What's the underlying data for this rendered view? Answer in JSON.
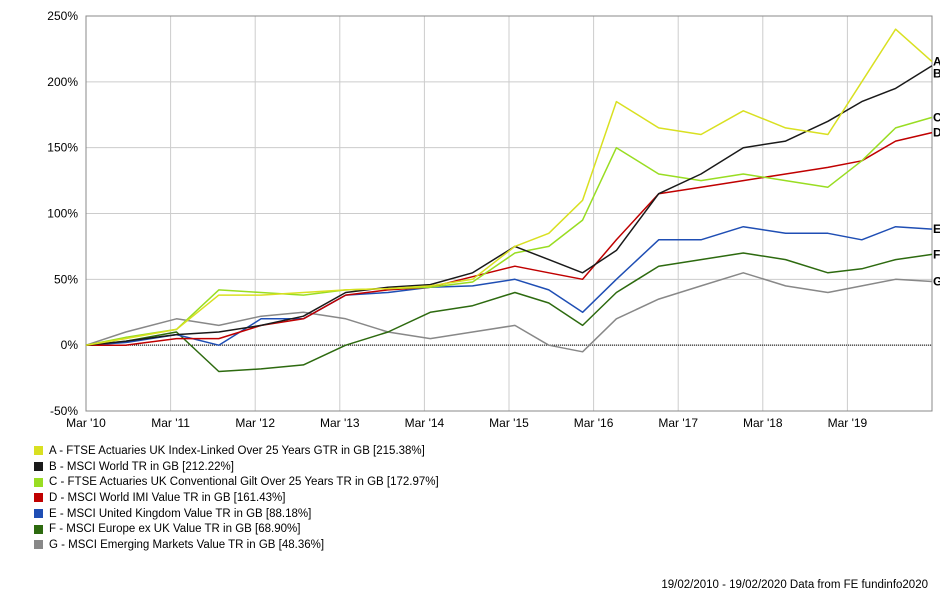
{
  "chart_data": {
    "type": "line",
    "x_tick_labels": [
      "Mar '10",
      "Mar '11",
      "Mar '12",
      "Mar '13",
      "Mar '14",
      "Mar '15",
      "Mar '16",
      "Mar '17",
      "Mar '18",
      "Mar '19"
    ],
    "y_ticks": [
      -50,
      0,
      50,
      100,
      150,
      200,
      250
    ],
    "y_tick_labels": [
      "-50%",
      "0%",
      "50%",
      "100%",
      "150%",
      "200%",
      "250%"
    ],
    "ylim": [
      -50,
      250
    ],
    "xlim": [
      2010.13,
      2020.13
    ],
    "grid": true,
    "x": [
      2010.13,
      2010.6,
      2011.2,
      2011.7,
      2012.2,
      2012.7,
      2013.2,
      2013.7,
      2014.2,
      2014.7,
      2015.2,
      2015.6,
      2016.0,
      2016.4,
      2016.9,
      2017.4,
      2017.9,
      2018.4,
      2018.9,
      2019.3,
      2019.7,
      2020.13
    ],
    "series": [
      {
        "name": "A - FTSE Actuaries UK Index-Linked Over 25 Years GTR in GB [215.38%]",
        "tag": "A",
        "color": "#d9e021",
        "values": [
          0,
          5,
          12,
          38,
          38,
          40,
          42,
          43,
          45,
          50,
          75,
          85,
          110,
          185,
          165,
          160,
          178,
          165,
          160,
          200,
          240,
          215.38
        ]
      },
      {
        "name": "B - MSCI World TR in GB [212.22%]",
        "tag": "B",
        "color": "#1a1a1a",
        "values": [
          0,
          3,
          8,
          10,
          15,
          22,
          40,
          44,
          46,
          55,
          75,
          65,
          55,
          72,
          115,
          130,
          150,
          155,
          170,
          185,
          195,
          212.22
        ]
      },
      {
        "name": "C - FTSE Actuaries UK Conventional Gilt Over 25 Years TR in GB [172.97%]",
        "tag": "C",
        "color": "#99dd22",
        "values": [
          0,
          6,
          12,
          42,
          40,
          38,
          42,
          43,
          44,
          48,
          70,
          75,
          95,
          150,
          130,
          125,
          130,
          125,
          120,
          140,
          165,
          172.97
        ]
      },
      {
        "name": "D - MSCI World IMI Value TR in GB [161.43%]",
        "tag": "D",
        "color": "#c00000",
        "values": [
          0,
          0,
          5,
          5,
          15,
          20,
          38,
          42,
          44,
          52,
          60,
          55,
          50,
          80,
          115,
          120,
          125,
          130,
          135,
          140,
          155,
          161.43
        ]
      },
      {
        "name": "E - MSCI United Kingdom Value TR in GB [88.18%]",
        "tag": "E",
        "color": "#1f4eb4",
        "values": [
          0,
          2,
          8,
          0,
          20,
          20,
          38,
          40,
          44,
          45,
          50,
          42,
          25,
          50,
          80,
          80,
          90,
          85,
          85,
          80,
          90,
          88.18
        ]
      },
      {
        "name": "F - MSCI Europe ex UK Value TR in GB [68.90%]",
        "tag": "F",
        "color": "#2d6a0f",
        "values": [
          0,
          3,
          10,
          -20,
          -18,
          -15,
          0,
          10,
          25,
          30,
          40,
          32,
          15,
          40,
          60,
          65,
          70,
          65,
          55,
          58,
          65,
          68.9
        ]
      },
      {
        "name": "G - MSCI Emerging Markets Value TR in GB [48.36%]",
        "tag": "G",
        "color": "#888888",
        "values": [
          0,
          10,
          20,
          15,
          22,
          25,
          20,
          10,
          5,
          10,
          15,
          0,
          -5,
          20,
          35,
          45,
          55,
          45,
          40,
          45,
          50,
          48.36
        ]
      }
    ]
  },
  "footer": "19/02/2010 - 19/02/2020 Data from FE fundinfo2020"
}
